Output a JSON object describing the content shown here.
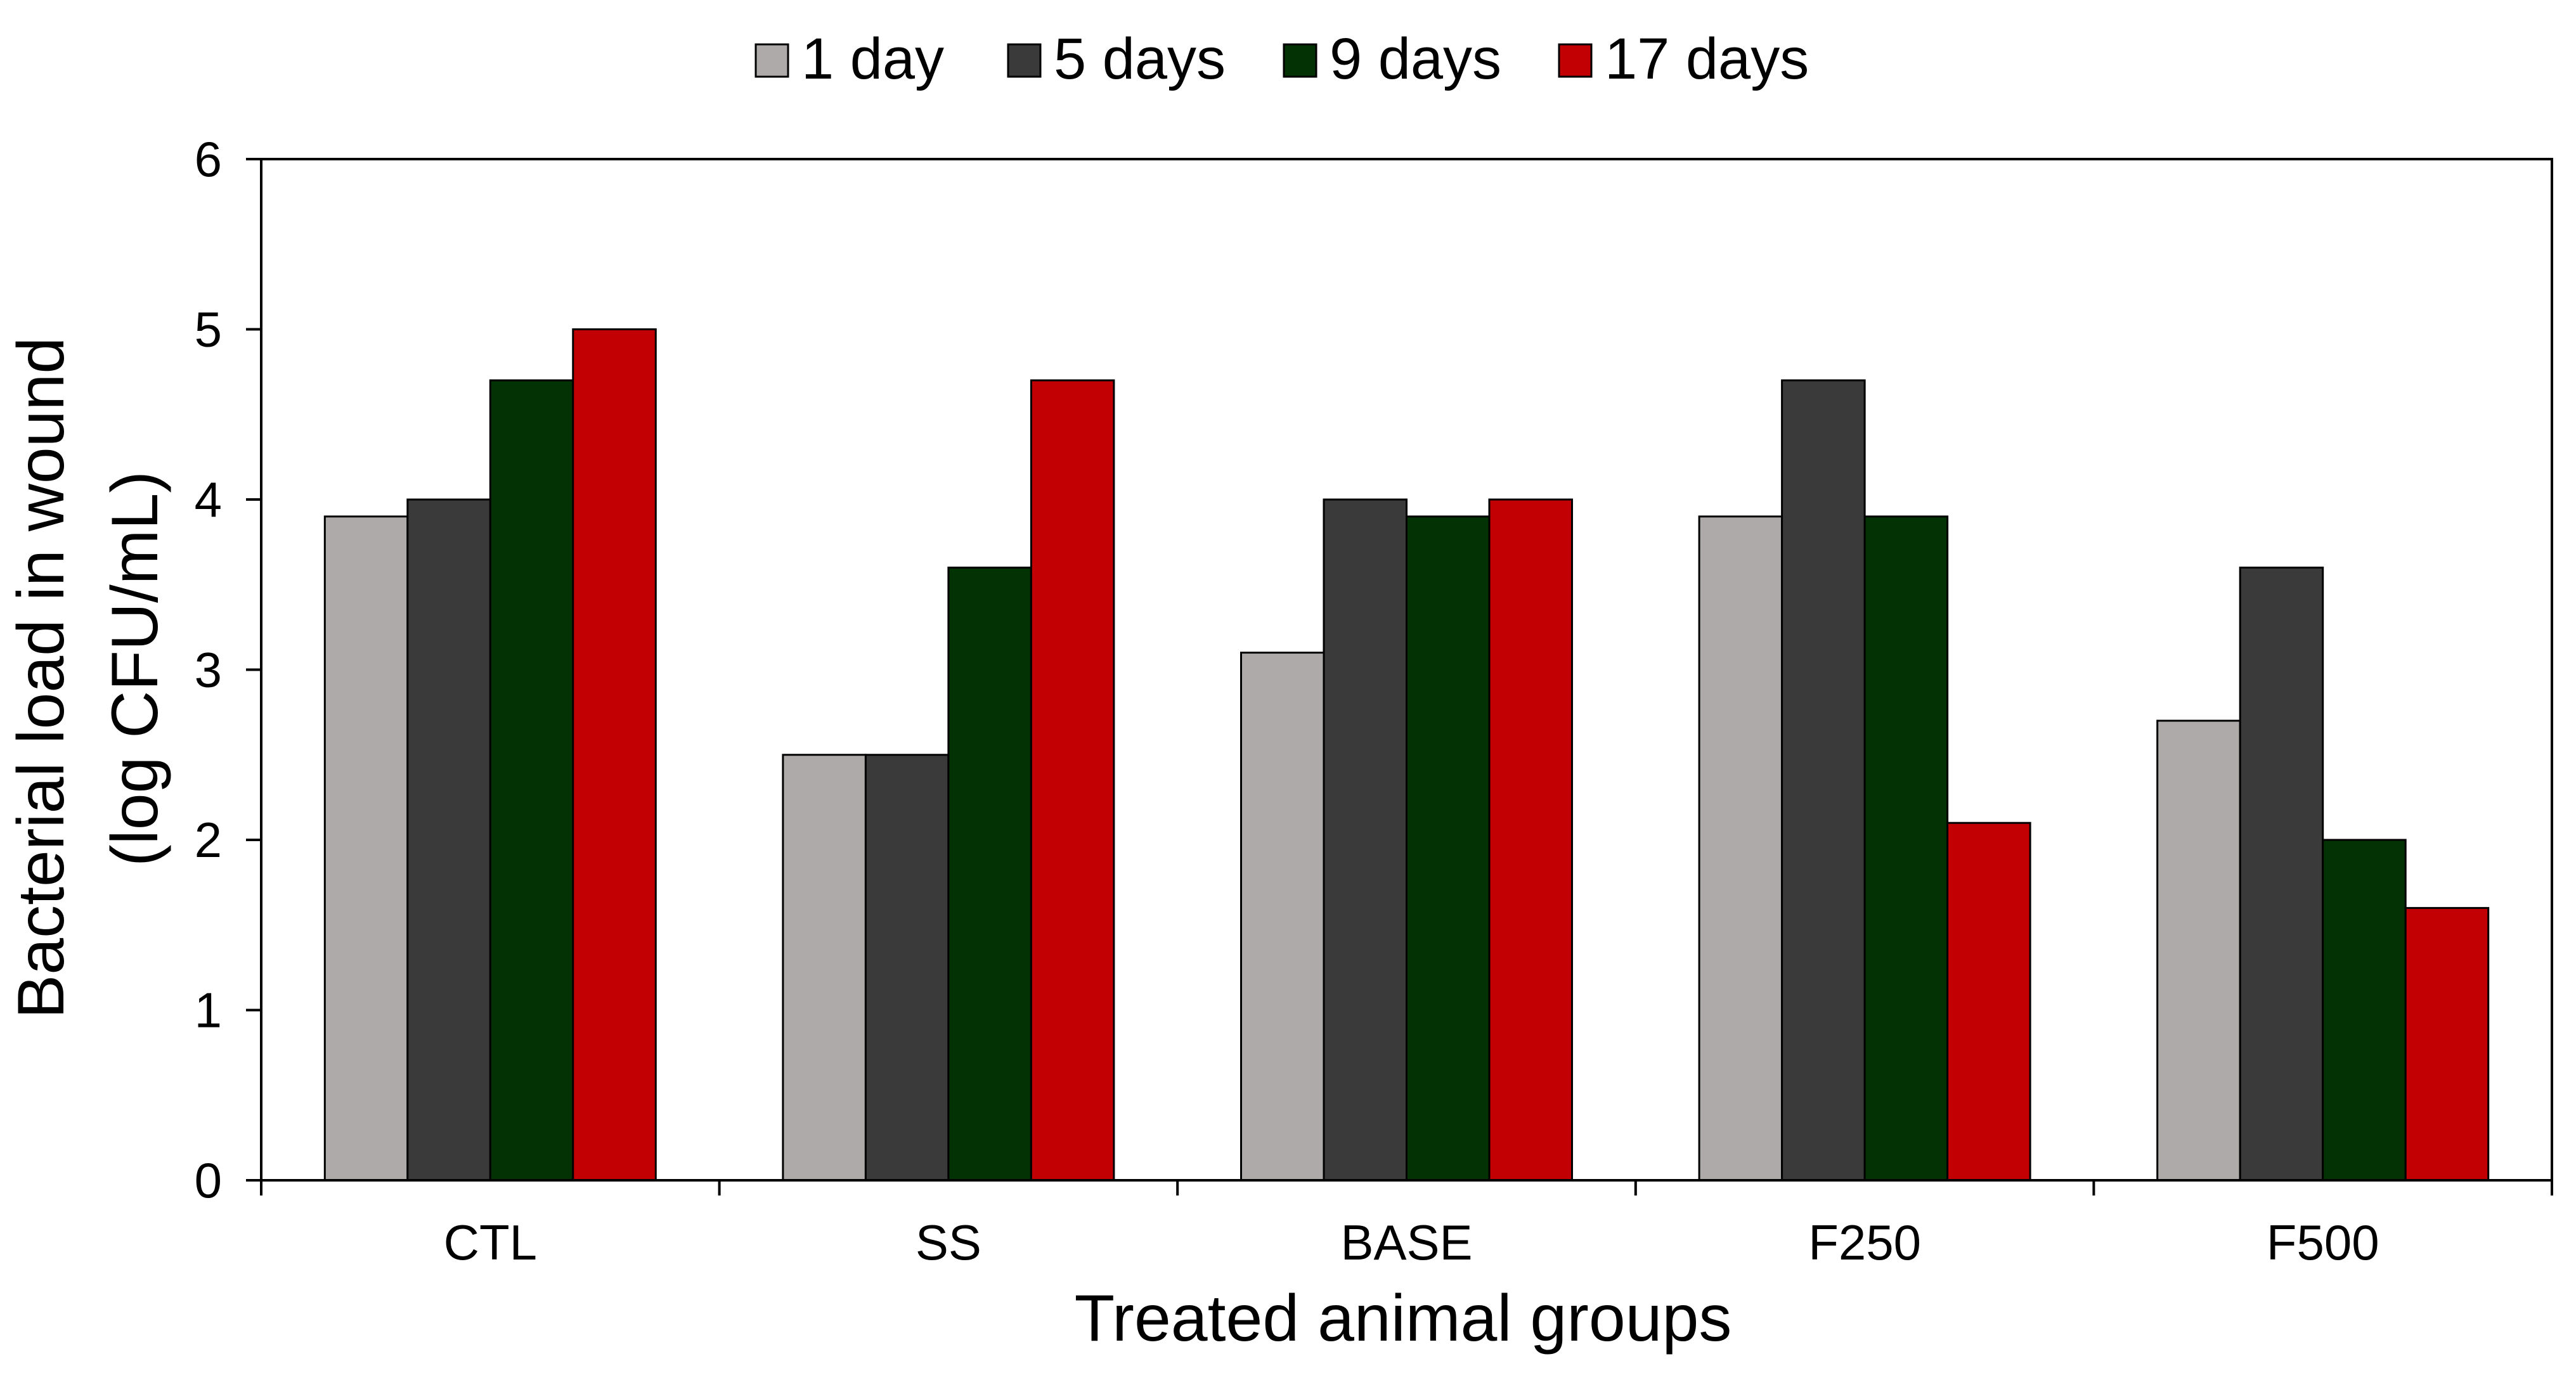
{
  "chart_data": {
    "type": "bar",
    "title": "",
    "xlabel": "Treated animal groups",
    "ylabel_line1": "Bacterial load in wound",
    "ylabel_line2": "(log CFU/mL)",
    "ylim": [
      0,
      6
    ],
    "yticks": [
      "0",
      "1",
      "2",
      "3",
      "4",
      "5",
      "6"
    ],
    "categories": [
      "CTL",
      "SS",
      "BASE",
      "F250",
      "F500"
    ],
    "series": [
      {
        "name": "1 day",
        "color": "#afaaaa",
        "values": [
          3.9,
          2.5,
          3.1,
          3.9,
          2.7
        ]
      },
      {
        "name": "5 days",
        "color": "#3b3a3a",
        "values": [
          4.0,
          2.5,
          4.0,
          4.7,
          3.6
        ]
      },
      {
        "name": "9 days",
        "color": "#033205",
        "values": [
          4.7,
          3.6,
          3.9,
          3.9,
          2.0
        ]
      },
      {
        "name": "17 days",
        "color": "#c20003",
        "values": [
          5.0,
          4.7,
          4.0,
          2.1,
          1.6
        ]
      }
    ],
    "legend_position": "top-center",
    "grid": false
  }
}
